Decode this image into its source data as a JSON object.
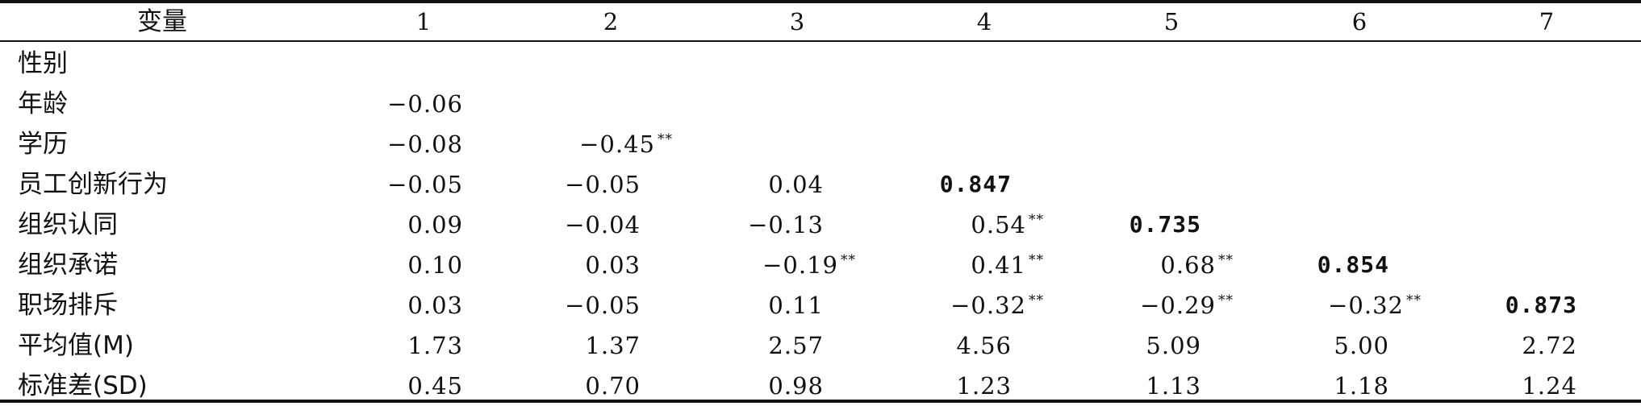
{
  "table": {
    "header": {
      "variable": "变量",
      "cols": [
        "1",
        "2",
        "3",
        "4",
        "5",
        "6",
        "7"
      ]
    },
    "rows": [
      {
        "label": "性别",
        "cells": []
      },
      {
        "label": "年龄",
        "cells": [
          {
            "v": "−0.06",
            "sig": ""
          }
        ]
      },
      {
        "label": "学历",
        "cells": [
          {
            "v": "−0.08",
            "sig": ""
          },
          {
            "v": "−0.45",
            "sig": "**"
          }
        ]
      },
      {
        "label": "员工创新行为",
        "cells": [
          {
            "v": "−0.05",
            "sig": ""
          },
          {
            "v": "−0.05",
            "sig": ""
          },
          {
            "v": "0.04",
            "sig": ""
          },
          {
            "v": "0.847",
            "sig": "",
            "bold": true
          }
        ]
      },
      {
        "label": "组织认同",
        "cells": [
          {
            "v": "0.09",
            "sig": ""
          },
          {
            "v": "−0.04",
            "sig": ""
          },
          {
            "v": "−0.13",
            "sig": ""
          },
          {
            "v": "0.54",
            "sig": "**"
          },
          {
            "v": "0.735",
            "sig": "",
            "bold": true
          }
        ]
      },
      {
        "label": "组织承诺",
        "cells": [
          {
            "v": "0.10",
            "sig": ""
          },
          {
            "v": "0.03",
            "sig": ""
          },
          {
            "v": "−0.19",
            "sig": "**"
          },
          {
            "v": "0.41",
            "sig": "**"
          },
          {
            "v": "0.68",
            "sig": "**"
          },
          {
            "v": "0.854",
            "sig": "",
            "bold": true
          }
        ]
      },
      {
        "label": "职场排斥",
        "cells": [
          {
            "v": "0.03",
            "sig": ""
          },
          {
            "v": "−0.05",
            "sig": ""
          },
          {
            "v": "0.11",
            "sig": ""
          },
          {
            "v": "−0.32",
            "sig": "**"
          },
          {
            "v": "−0.29",
            "sig": "**"
          },
          {
            "v": "−0.32",
            "sig": "**"
          },
          {
            "v": "0.873",
            "sig": "",
            "bold": true
          }
        ]
      },
      {
        "label": "平均值(M)",
        "cells": [
          {
            "v": "1.73",
            "sig": ""
          },
          {
            "v": "1.37",
            "sig": ""
          },
          {
            "v": "2.57",
            "sig": ""
          },
          {
            "v": "4.56",
            "sig": ""
          },
          {
            "v": "5.09",
            "sig": ""
          },
          {
            "v": "5.00",
            "sig": ""
          },
          {
            "v": "2.72",
            "sig": ""
          }
        ]
      },
      {
        "label": "标准差(SD)",
        "cells": [
          {
            "v": "0.45",
            "sig": ""
          },
          {
            "v": "0.70",
            "sig": ""
          },
          {
            "v": "0.98",
            "sig": ""
          },
          {
            "v": "1.23",
            "sig": ""
          },
          {
            "v": "1.13",
            "sig": ""
          },
          {
            "v": "1.18",
            "sig": ""
          },
          {
            "v": "1.24",
            "sig": ""
          }
        ]
      }
    ]
  }
}
